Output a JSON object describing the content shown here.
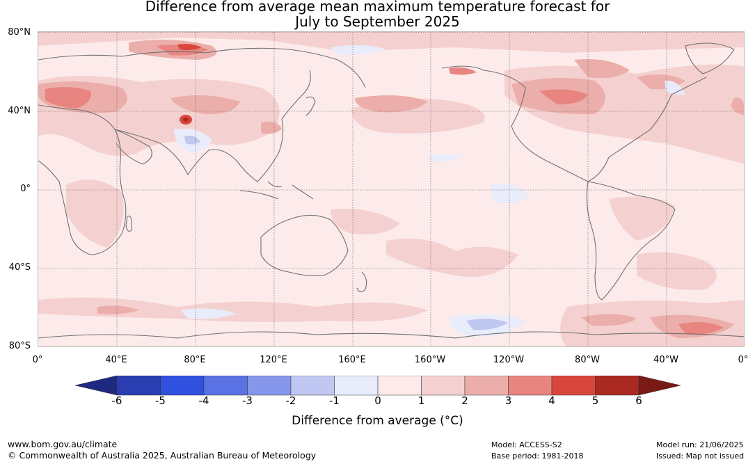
{
  "title": {
    "line1": "Difference from average mean maximum temperature forecast for",
    "line2": "July to September 2025"
  },
  "map": {
    "lat_labels": [
      "80°N",
      "40°N",
      "0°",
      "40°S",
      "80°S"
    ],
    "lon_labels": [
      "0°",
      "40°E",
      "80°E",
      "120°E",
      "160°E",
      "160°W",
      "120°W",
      "80°W",
      "40°W",
      "0°"
    ],
    "anomaly_colors": {
      "background": "#fcebea",
      "warm_1_2": "#f4d1d0",
      "warm_2_3": "#ecaeaa",
      "warm_3_4": "#e88580",
      "warm_4_5": "#d9473c",
      "warm_5_6": "#aa2a22",
      "cool_0_1": "#e8ecfb",
      "cool_1_2": "#c0c8f0",
      "coast": "#707070"
    }
  },
  "colorbar": {
    "ticks": [
      "-6",
      "-5",
      "-4",
      "-3",
      "-2",
      "-1",
      "0",
      "1",
      "2",
      "3",
      "4",
      "5",
      "6"
    ],
    "colors": [
      "#1e2a80",
      "#2a3eb2",
      "#3050e0",
      "#5a72e4",
      "#8696ea",
      "#bfc7f2",
      "#e8ecfb",
      "#fcebea",
      "#f4d1d0",
      "#ecaeaa",
      "#e88580",
      "#d9473c",
      "#aa2a22",
      "#7a1a14"
    ],
    "label": "Difference from average (°C)"
  },
  "footer": {
    "website": "www.bom.gov.au/climate",
    "copyright": "© Commonwealth of Australia 2025, Australian Bureau of Meteorology",
    "model": "Model: ACCESS-S2",
    "base_period": "Base period: 1981-2018",
    "model_run": "Model run: 21/06/2025",
    "issued": "Issued: Map not issued"
  }
}
